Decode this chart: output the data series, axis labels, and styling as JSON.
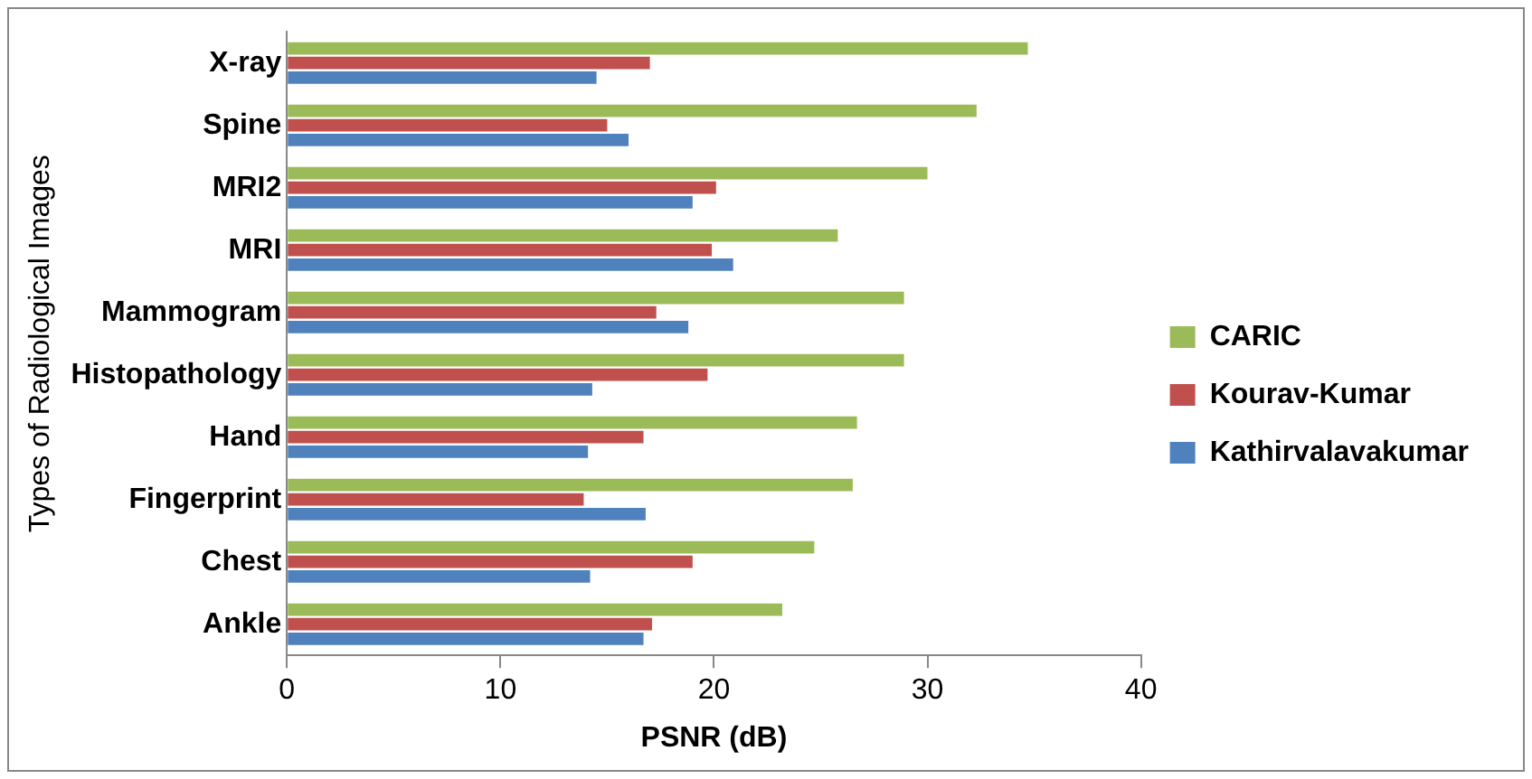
{
  "chart_data": {
    "type": "bar",
    "orientation": "horizontal",
    "xlabel": "PSNR (dB)",
    "ylabel": "Types of Radiological Images",
    "categories": [
      "X-ray",
      "Spine",
      "MRI2",
      "MRI",
      "Mammogram",
      "Histopathology",
      "Hand",
      "Fingerprint",
      "Chest",
      "Ankle"
    ],
    "series": [
      {
        "name": "CARIC",
        "color": "#9bbb59",
        "values": [
          34.7,
          32.3,
          30.0,
          25.8,
          28.9,
          28.9,
          26.7,
          26.5,
          24.7,
          23.2
        ]
      },
      {
        "name": "Kourav-Kumar",
        "color": "#c0504d",
        "values": [
          17.0,
          15.0,
          20.1,
          19.9,
          17.3,
          19.7,
          16.7,
          13.9,
          19.0,
          17.1
        ]
      },
      {
        "name": "Kathirvalavakumar",
        "color": "#4f81bd",
        "values": [
          14.5,
          16.0,
          19.0,
          20.9,
          18.8,
          14.3,
          14.1,
          16.8,
          14.2,
          16.7
        ]
      }
    ],
    "xlim": [
      0,
      40
    ],
    "xticks": [
      0,
      10,
      20,
      30,
      40
    ],
    "grid": false,
    "legend": "right"
  }
}
